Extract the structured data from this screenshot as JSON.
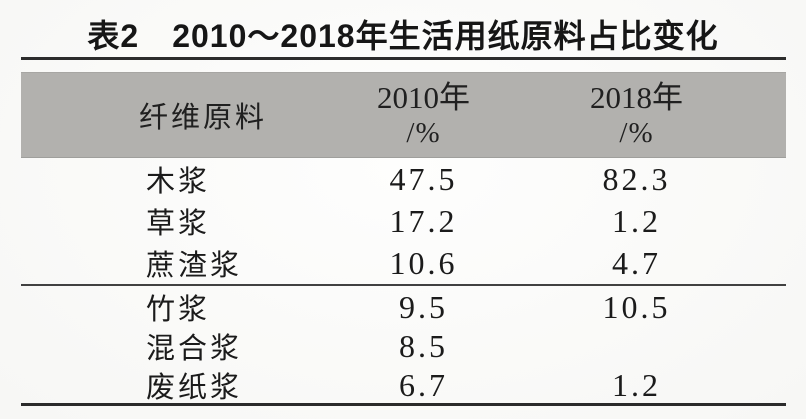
{
  "title": "表2　2010～2018年生活用纸原料占比变化",
  "table": {
    "header": {
      "material": "纤维原料",
      "col2010_year": "2010年",
      "col2010_unit": "/%",
      "col2018_year": "2018年",
      "col2018_unit": "/%"
    },
    "groups": [
      {
        "rows": [
          {
            "name": "木浆",
            "v2010": "47.5",
            "v2018": "82.3"
          },
          {
            "name": "草浆",
            "v2010": "17.2",
            "v2018": "1.2"
          },
          {
            "name": "蔗渣浆",
            "v2010": "10.6",
            "v2018": "4.7"
          }
        ]
      },
      {
        "rows": [
          {
            "name": "竹浆",
            "v2010": "9.5",
            "v2018": "10.5"
          },
          {
            "name": "混合浆",
            "v2010": "8.5",
            "v2018": ""
          },
          {
            "name": "废纸浆",
            "v2010": "6.7",
            "v2018": "1.2"
          }
        ]
      }
    ]
  },
  "colors": {
    "header_bg": "#b2b1ae",
    "rule": "#2c2c2c",
    "text": "#1b1b1b",
    "page_bg": "#fcfcfa"
  },
  "chart_data": {
    "type": "table",
    "title": "表2 2010～2018年生活用纸原料占比变化",
    "columns": [
      "纤维原料",
      "2010年/%",
      "2018年/%"
    ],
    "categories": [
      "木浆",
      "草浆",
      "蔗渣浆",
      "竹浆",
      "混合浆",
      "废纸浆"
    ],
    "series": [
      {
        "name": "2010年/%",
        "values": [
          47.5,
          17.2,
          10.6,
          9.5,
          8.5,
          6.7
        ]
      },
      {
        "name": "2018年/%",
        "values": [
          82.3,
          1.2,
          4.7,
          10.5,
          null,
          1.2
        ]
      }
    ]
  }
}
